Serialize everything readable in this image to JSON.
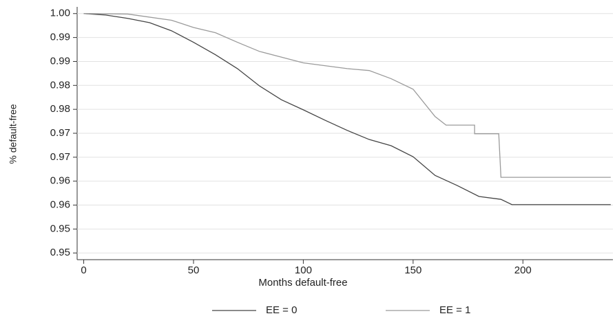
{
  "chart_data": {
    "type": "line",
    "x_label": "Months default-free",
    "y_label": "% default-free",
    "xlim": [
      -3,
      241
    ],
    "ylim": [
      0.9486,
      1.0014
    ],
    "xticks": [
      0,
      50,
      100,
      150,
      200
    ],
    "yticks": [
      {
        "value": 1.0,
        "label": "1.00"
      },
      {
        "value": 0.995,
        "label": "0.99"
      },
      {
        "value": 0.99,
        "label": "0.99"
      },
      {
        "value": 0.985,
        "label": "0.98"
      },
      {
        "value": 0.98,
        "label": "0.98"
      },
      {
        "value": 0.975,
        "label": "0.97"
      },
      {
        "value": 0.97,
        "label": "0.97"
      },
      {
        "value": 0.965,
        "label": "0.96"
      },
      {
        "value": 0.96,
        "label": "0.96"
      },
      {
        "value": 0.955,
        "label": "0.95"
      },
      {
        "value": 0.95,
        "label": "0.95"
      }
    ],
    "grid": true,
    "legend": "bottom",
    "series": [
      {
        "name": "EE = 0",
        "color": "#444444",
        "x": [
          0,
          10,
          20,
          30,
          40,
          50,
          60,
          70,
          80,
          90,
          100,
          110,
          120,
          130,
          140,
          150,
          160,
          170,
          180,
          190,
          195,
          240
        ],
        "values": [
          1.0,
          0.9997,
          0.999,
          0.9981,
          0.9964,
          0.994,
          0.9914,
          0.9885,
          0.9849,
          0.982,
          0.9799,
          0.9777,
          0.9756,
          0.9737,
          0.9724,
          0.9701,
          0.9662,
          0.9641,
          0.9618,
          0.9612,
          0.9601,
          0.9601
        ]
      },
      {
        "name": "EE = 1",
        "color": "#9a9a9a",
        "x": [
          0,
          20,
          40,
          50,
          60,
          70,
          80,
          100,
          120,
          130,
          140,
          150,
          160,
          165,
          178,
          178,
          189,
          190,
          240
        ],
        "values": [
          1.0,
          0.9999,
          0.9986,
          0.9971,
          0.996,
          0.994,
          0.9921,
          0.9897,
          0.9885,
          0.9881,
          0.9864,
          0.9842,
          0.9785,
          0.9767,
          0.9767,
          0.9749,
          0.9749,
          0.9658,
          0.9658
        ]
      }
    ]
  }
}
